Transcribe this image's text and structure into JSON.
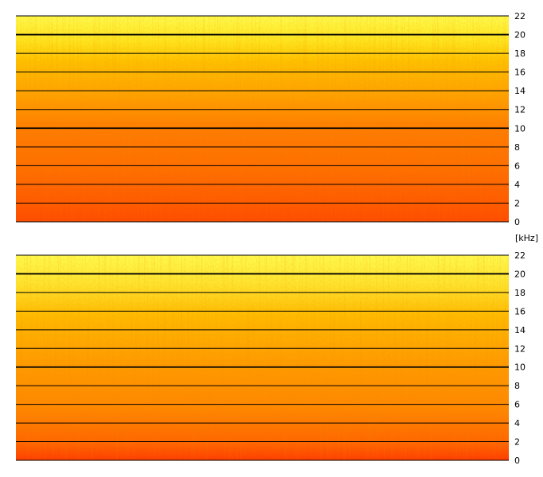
{
  "chart_data": [
    {
      "type": "heatmap",
      "title": "",
      "xlabel": "",
      "ylabel": "",
      "ylim": [
        0,
        22
      ],
      "yticks": [
        22,
        20,
        18,
        16,
        14,
        12,
        10,
        8,
        6,
        4,
        2,
        0
      ],
      "grid": true,
      "colormap": [
        "#ff3b00",
        "#ff6a00",
        "#ffa000",
        "#ffd21a",
        "#ffff40"
      ]
    },
    {
      "type": "heatmap",
      "title": "",
      "xlabel": "",
      "ylabel": "",
      "ylim": [
        0,
        22
      ],
      "yticks": [
        22,
        20,
        18,
        16,
        14,
        12,
        10,
        8,
        6,
        4,
        2,
        0
      ],
      "grid": true,
      "colormap": [
        "#ff3b00",
        "#ff6a00",
        "#ffa000",
        "#ffd21a",
        "#ffff40"
      ]
    }
  ],
  "unit_label": "[kHz]"
}
